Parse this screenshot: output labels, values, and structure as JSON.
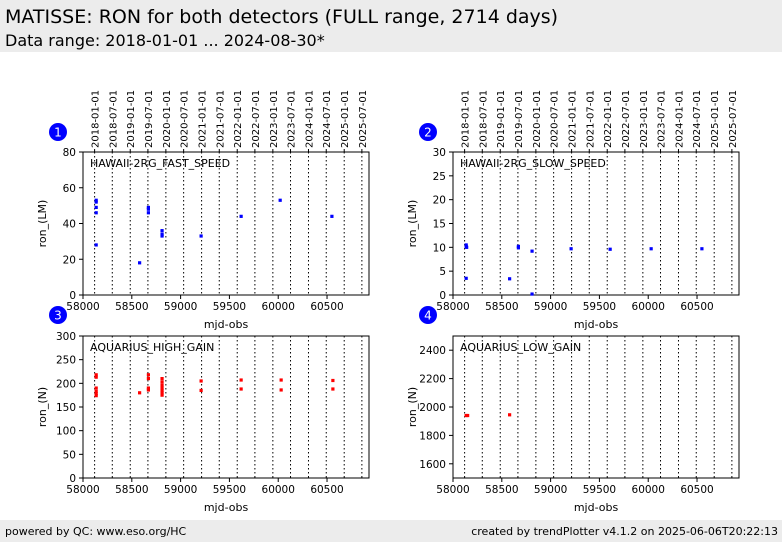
{
  "header": {
    "title": "MATISSE: RON for both detectors (FULL range, 2714 days)",
    "subtitle": "Data range: 2018-01-01 ... 2024-08-30*"
  },
  "footer": {
    "left": "powered by QC: www.eso.org/HC",
    "right": "created by trendPlotter v4.1.2 on 2025-06-06T20:22:13"
  },
  "colors": {
    "blue": "#0000ff",
    "red": "#ff0000",
    "badge": "#0000ff",
    "header_bg": "#ececec"
  },
  "top_date_ticks": {
    "labels": [
      "2018-01-01",
      "2018-07-01",
      "2019-01-01",
      "2019-07-01",
      "2020-01-01",
      "2020-07-01",
      "2021-01-01",
      "2021-07-01",
      "2022-01-01",
      "2022-07-01",
      "2023-01-01",
      "2023-07-01",
      "2024-01-01",
      "2024-07-01",
      "2025-01-01",
      "2025-07-01"
    ],
    "mjd": [
      58119,
      58300,
      58484,
      58665,
      58849,
      59031,
      59215,
      59396,
      59580,
      59761,
      59945,
      60126,
      60310,
      60492,
      60676,
      60857
    ]
  },
  "chart_data": [
    {
      "type": "scatter",
      "badge": "1",
      "title": "HAWAII-2RG_FAST_SPEED",
      "xlabel": "mjd-obs",
      "ylabel": "ron_(LM)",
      "xlim": [
        58000,
        60930
      ],
      "ylim": [
        0,
        80
      ],
      "xticks": [
        58000,
        58500,
        59000,
        59500,
        60000,
        60500
      ],
      "yticks": [
        0,
        20,
        40,
        60,
        80
      ],
      "color": "blue",
      "points": [
        [
          58135,
          53
        ],
        [
          58135,
          52
        ],
        [
          58135,
          49
        ],
        [
          58135,
          46
        ],
        [
          58135,
          28
        ],
        [
          58580,
          18
        ],
        [
          58670,
          49
        ],
        [
          58670,
          48
        ],
        [
          58670,
          46
        ],
        [
          58810,
          36
        ],
        [
          58810,
          34
        ],
        [
          58810,
          33
        ],
        [
          59210,
          33
        ],
        [
          59620,
          44
        ],
        [
          60020,
          53
        ],
        [
          60550,
          44
        ]
      ]
    },
    {
      "type": "scatter",
      "badge": "2",
      "title": "HAWAII-2RG_SLOW_SPEED",
      "xlabel": "mjd-obs",
      "ylabel": "ron_(LM)",
      "xlim": [
        58000,
        60930
      ],
      "ylim": [
        0,
        30
      ],
      "xticks": [
        58000,
        58500,
        59000,
        59500,
        60000,
        60500
      ],
      "yticks": [
        0,
        5,
        10,
        15,
        20,
        25,
        30
      ],
      "color": "blue",
      "points": [
        [
          58135,
          10.5
        ],
        [
          58135,
          10.2
        ],
        [
          58140,
          10
        ],
        [
          58135,
          3.5
        ],
        [
          58580,
          3.4
        ],
        [
          58670,
          10.2
        ],
        [
          58670,
          9.9
        ],
        [
          58810,
          9.2
        ],
        [
          58810,
          0.2
        ],
        [
          59210,
          9.7
        ],
        [
          59610,
          9.6
        ],
        [
          60030,
          9.7
        ],
        [
          60550,
          9.7
        ]
      ]
    },
    {
      "type": "scatter",
      "badge": "3",
      "title": "AQUARIUS_HIGH_GAIN",
      "xlabel": "mjd-obs",
      "ylabel": "ron_(N)",
      "xlim": [
        58000,
        60930
      ],
      "ylim": [
        0,
        300
      ],
      "xticks": [
        58000,
        58500,
        59000,
        59500,
        60000,
        60500
      ],
      "yticks": [
        0,
        50,
        100,
        150,
        200,
        250,
        300
      ],
      "color": "red",
      "points": [
        [
          58135,
          218
        ],
        [
          58135,
          213
        ],
        [
          58135,
          190
        ],
        [
          58135,
          183
        ],
        [
          58135,
          178
        ],
        [
          58135,
          174
        ],
        [
          58580,
          180
        ],
        [
          58670,
          218
        ],
        [
          58670,
          210
        ],
        [
          58670,
          190
        ],
        [
          58670,
          186
        ],
        [
          58810,
          210
        ],
        [
          58810,
          203
        ],
        [
          58810,
          196
        ],
        [
          58810,
          190
        ],
        [
          58810,
          185
        ],
        [
          58810,
          180
        ],
        [
          58810,
          175
        ],
        [
          59210,
          205
        ],
        [
          59210,
          185
        ],
        [
          59620,
          207
        ],
        [
          59620,
          188
        ],
        [
          60030,
          207
        ],
        [
          60030,
          186
        ],
        [
          60560,
          206
        ],
        [
          60560,
          188
        ]
      ]
    },
    {
      "type": "scatter",
      "badge": "4",
      "title": "AQUARIUS_LOW_GAIN",
      "xlabel": "mjd-obs",
      "ylabel": "ron_(N)",
      "xlim": [
        58000,
        60930
      ],
      "ylim": [
        1500,
        2500
      ],
      "xticks": [
        58000,
        58500,
        59000,
        59500,
        60000,
        60500
      ],
      "yticks": [
        1600,
        1800,
        2000,
        2200,
        2400
      ],
      "color": "red",
      "points": [
        [
          58135,
          1940
        ],
        [
          58150,
          1940
        ],
        [
          58580,
          1945
        ]
      ]
    }
  ]
}
